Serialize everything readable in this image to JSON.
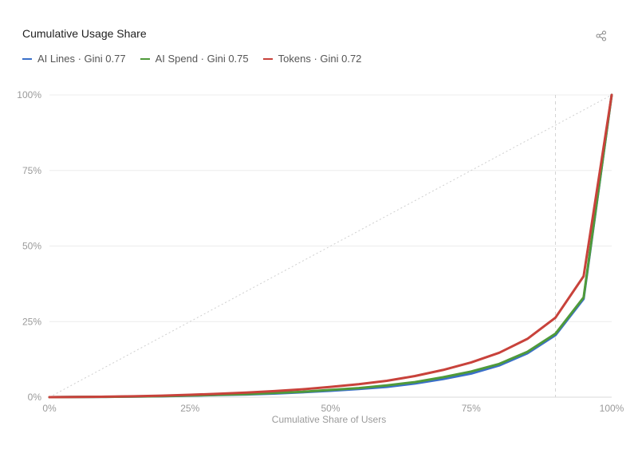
{
  "header": {
    "title": "Cumulative Usage Share",
    "share_icon": "share-icon"
  },
  "chart_data": {
    "type": "line",
    "title": "Cumulative Usage Share",
    "xlabel": "Cumulative Share of Users",
    "ylabel": "",
    "xlim": [
      0,
      100
    ],
    "ylim": [
      0,
      100
    ],
    "x_ticks": [
      "0%",
      "25%",
      "50%",
      "75%",
      "100%"
    ],
    "y_ticks": [
      "0%",
      "25%",
      "50%",
      "75%",
      "100%"
    ],
    "grid": "horizontal",
    "legend_position": "top-left",
    "reference_lines": [
      {
        "kind": "equality-diagonal",
        "style": "dotted"
      },
      {
        "kind": "vertical",
        "x": 90,
        "style": "dashed"
      }
    ],
    "x": [
      0,
      5,
      10,
      15,
      20,
      25,
      30,
      35,
      40,
      45,
      50,
      55,
      60,
      65,
      70,
      75,
      80,
      85,
      90,
      95,
      100
    ],
    "series": [
      {
        "name": "AI Lines · Gini 0.77",
        "color": "#3a6fc9",
        "values": [
          0,
          0.05,
          0.1,
          0.2,
          0.3,
          0.5,
          0.7,
          0.9,
          1.2,
          1.6,
          2.1,
          2.7,
          3.4,
          4.5,
          6.0,
          7.8,
          10.5,
          14.5,
          20.5,
          32.5,
          100
        ]
      },
      {
        "name": "AI Spend · Gini 0.75",
        "color": "#4f9a3a",
        "values": [
          0,
          0.05,
          0.1,
          0.2,
          0.35,
          0.55,
          0.8,
          1.0,
          1.4,
          1.8,
          2.4,
          3.0,
          3.9,
          5.0,
          6.6,
          8.5,
          11.0,
          15.0,
          21.0,
          33.0,
          100
        ]
      },
      {
        "name": "Tokens · Gini 0.72",
        "color": "#c8423b",
        "values": [
          0,
          0.05,
          0.15,
          0.3,
          0.5,
          0.8,
          1.1,
          1.5,
          2.0,
          2.6,
          3.4,
          4.3,
          5.4,
          7.0,
          9.0,
          11.5,
          14.7,
          19.3,
          26.3,
          40.0,
          100
        ]
      }
    ]
  }
}
